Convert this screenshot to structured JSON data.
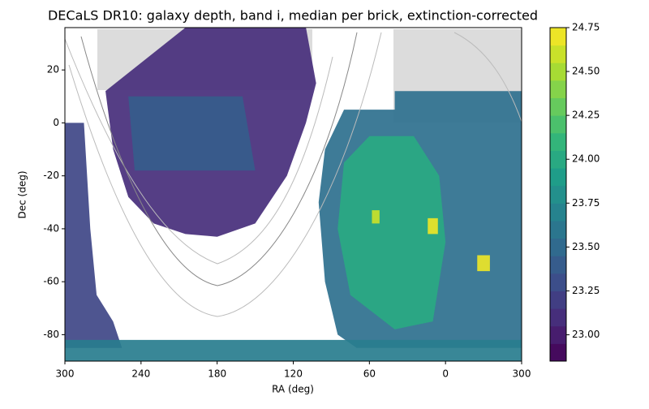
{
  "chart_data": {
    "type": "skymap",
    "title": "DECaLS DR10: galaxy depth, band i, median per brick, extinction-corrected",
    "x_label": "RA (deg)",
    "y_label": "Dec (deg)",
    "xlim": [
      300,
      -60
    ],
    "ylim": [
      -90,
      36
    ],
    "xticks": [
      300,
      240,
      180,
      120,
      60,
      0,
      {
        "value": -60,
        "label": "300"
      }
    ],
    "yticks": [
      20,
      0,
      -20,
      -40,
      -60,
      -80
    ],
    "clim": [
      22.85,
      24.75
    ],
    "cticks": [
      {
        "value": 23,
        "label": "23.00"
      },
      {
        "value": 23.25,
        "label": "23.25"
      },
      {
        "value": 23.5,
        "label": "23.50"
      },
      {
        "value": 23.75,
        "label": "23.75"
      },
      {
        "value": 24,
        "label": "24.00"
      },
      {
        "value": 24.25,
        "label": "24.25"
      },
      {
        "value": 24.5,
        "label": "24.50"
      },
      {
        "value": 24.75,
        "label": "24.75"
      }
    ],
    "regions": [
      {
        "ra": [
          268,
          262,
          250,
          230,
          205,
          180,
          150,
          125,
          110,
          102,
          110,
          205
        ],
        "dec": [
          12,
          -10,
          -28,
          -38,
          -42,
          -43,
          -38,
          -20,
          0,
          15,
          36,
          36
        ],
        "value": 23.1
      },
      {
        "ra": [
          250,
          160,
          150,
          245
        ],
        "dec": [
          10,
          10,
          -18,
          -18
        ],
        "value": 23.4
      },
      {
        "ra": [
          300,
          285,
          280,
          275,
          262,
          255,
          300
        ],
        "dec": [
          0,
          0,
          -40,
          -65,
          -75,
          -85,
          -85
        ],
        "value": 23.25
      },
      {
        "ra": [
          95,
          80,
          40,
          40,
          -60,
          -60,
          5,
          70,
          85,
          95,
          100
        ],
        "dec": [
          -10,
          5,
          5,
          12,
          12,
          -85,
          -85,
          -85,
          -80,
          -60,
          -30
        ],
        "value": 23.55
      },
      {
        "ra": [
          80,
          60,
          25,
          5,
          0,
          10,
          40,
          75,
          85
        ],
        "dec": [
          -15,
          -5,
          -5,
          -20,
          -45,
          -75,
          -78,
          -65,
          -40
        ],
        "value": 24.0
      },
      {
        "ra": [
          300,
          -60,
          -60,
          300
        ],
        "dec": [
          -82,
          -82,
          -90,
          -90
        ],
        "value": 23.65
      },
      {
        "ra": [
          14,
          6,
          6,
          14
        ],
        "dec": [
          -36,
          -36,
          -42,
          -42
        ],
        "value": 24.7
      },
      {
        "ra": [
          -25,
          -35,
          -35,
          -25
        ],
        "dec": [
          -50,
          -50,
          -56,
          -56
        ],
        "value": 24.7
      },
      {
        "ra": [
          58,
          52,
          52,
          58
        ],
        "dec": [
          -33,
          -33,
          -38,
          -38
        ],
        "value": 24.6
      }
    ]
  }
}
